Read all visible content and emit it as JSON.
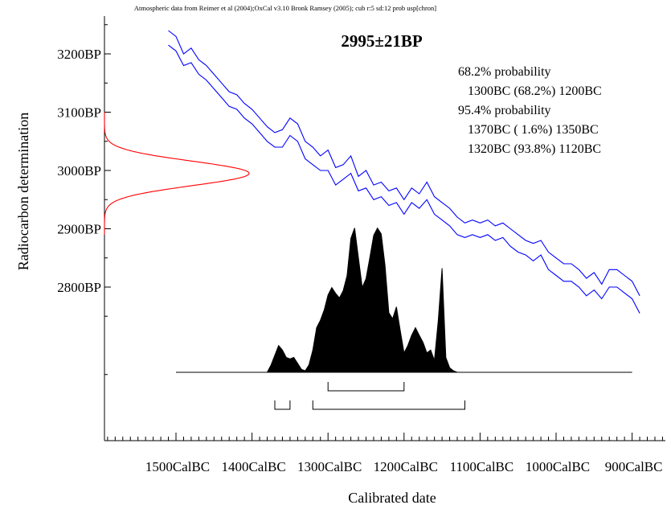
{
  "header": "Atmospheric data from Reimer et al (2004);OxCal v3.10 Bronk Ramsey (2005); cub r:5 sd:12 prob usp[chron]",
  "chart_data": {
    "type": "area",
    "title": "2995±21BP",
    "xlabel": "Calibrated date",
    "ylabel": "Radiocarbon determination",
    "x_ticks": [
      "1500CalBC",
      "1400CalBC",
      "1300CalBC",
      "1200CalBC",
      "1100CalBC",
      "1000CalBC",
      "900CalBC"
    ],
    "y_ticks": [
      "3200BP",
      "3100BP",
      "3000BP",
      "2900BP",
      "2800BP"
    ],
    "xlim": [
      1600,
      850
    ],
    "ylim": [
      2620,
      3270
    ],
    "measurement": {
      "mean_bp": 2995,
      "error": 21,
      "color": "#ff0000"
    },
    "probability_ranges": [
      "68.2% probability",
      "1300BC (68.2%) 1200BC",
      "95.4% probability",
      "1370BC ( 1.6%) 1350BC",
      "1320BC (93.8%) 1120BC"
    ],
    "ranges_68": [
      [
        1300,
        1200
      ]
    ],
    "ranges_95": [
      [
        1370,
        1350
      ],
      [
        1320,
        1120
      ]
    ],
    "calibration_curve": {
      "color": "#0000ff",
      "x": [
        1510,
        1500,
        1490,
        1480,
        1470,
        1460,
        1450,
        1440,
        1430,
        1420,
        1410,
        1400,
        1390,
        1380,
        1370,
        1360,
        1350,
        1340,
        1330,
        1320,
        1310,
        1300,
        1290,
        1280,
        1270,
        1260,
        1250,
        1240,
        1230,
        1220,
        1210,
        1200,
        1190,
        1180,
        1170,
        1160,
        1150,
        1140,
        1130,
        1120,
        1110,
        1100,
        1090,
        1080,
        1070,
        1060,
        1050,
        1040,
        1030,
        1020,
        1010,
        1000,
        990,
        980,
        970,
        960,
        950,
        940,
        930,
        920,
        910,
        900,
        890
      ],
      "upper": [
        3240,
        3230,
        3200,
        3210,
        3190,
        3180,
        3165,
        3150,
        3135,
        3130,
        3115,
        3105,
        3090,
        3075,
        3065,
        3070,
        3090,
        3080,
        3050,
        3040,
        3025,
        3035,
        3005,
        3010,
        3025,
        2990,
        3000,
        2975,
        2980,
        2965,
        2970,
        2950,
        2970,
        2960,
        2980,
        2955,
        2945,
        2935,
        2920,
        2910,
        2915,
        2910,
        2915,
        2905,
        2910,
        2900,
        2890,
        2880,
        2875,
        2880,
        2860,
        2850,
        2840,
        2840,
        2830,
        2815,
        2825,
        2805,
        2830,
        2830,
        2820,
        2810,
        2785
      ],
      "lower": [
        3215,
        3205,
        3180,
        3185,
        3165,
        3155,
        3140,
        3125,
        3110,
        3105,
        3090,
        3080,
        3065,
        3050,
        3040,
        3040,
        3060,
        3050,
        3020,
        3010,
        3000,
        3000,
        2975,
        2985,
        2995,
        2965,
        2970,
        2950,
        2955,
        2940,
        2945,
        2925,
        2945,
        2935,
        2950,
        2925,
        2915,
        2905,
        2890,
        2885,
        2890,
        2885,
        2890,
        2880,
        2885,
        2870,
        2860,
        2855,
        2845,
        2855,
        2830,
        2820,
        2810,
        2810,
        2800,
        2785,
        2795,
        2780,
        2800,
        2800,
        2790,
        2780,
        2755
      ]
    },
    "probability_distribution": {
      "x": [
        1500,
        1380,
        1375,
        1365,
        1360,
        1355,
        1350,
        1345,
        1340,
        1335,
        1330,
        1325,
        1320,
        1315,
        1310,
        1305,
        1300,
        1295,
        1290,
        1285,
        1280,
        1275,
        1270,
        1265,
        1260,
        1255,
        1250,
        1245,
        1240,
        1235,
        1230,
        1225,
        1220,
        1215,
        1210,
        1205,
        1200,
        1195,
        1190,
        1185,
        1180,
        1175,
        1170,
        1165,
        1160,
        1155,
        1150,
        1145,
        1140,
        1135,
        1130,
        1125,
        1120,
        1115,
        1110,
        1105,
        1100,
        900
      ],
      "y": [
        0,
        0,
        0.05,
        0.18,
        0.15,
        0.1,
        0.09,
        0.1,
        0.06,
        0.02,
        0.01,
        0.05,
        0.15,
        0.3,
        0.35,
        0.42,
        0.52,
        0.57,
        0.53,
        0.5,
        0.55,
        0.65,
        0.9,
        0.97,
        0.77,
        0.57,
        0.63,
        0.77,
        0.92,
        0.97,
        0.93,
        0.72,
        0.4,
        0.36,
        0.44,
        0.28,
        0.13,
        0.18,
        0.25,
        0.3,
        0.25,
        0.2,
        0.13,
        0.15,
        0.08,
        0.35,
        0.7,
        0.1,
        0.03,
        0.01,
        0,
        0,
        0,
        0,
        0,
        0,
        0,
        0
      ]
    }
  }
}
